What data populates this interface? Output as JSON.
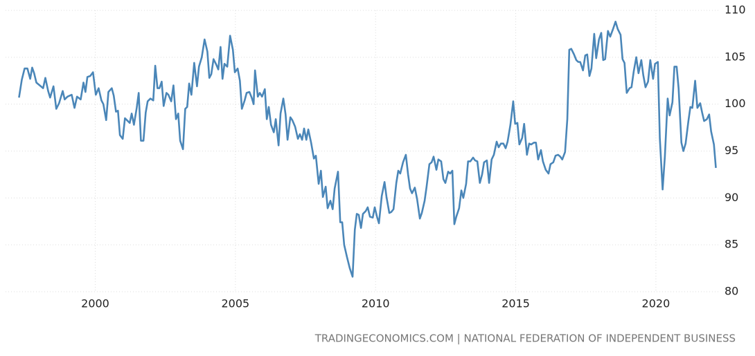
{
  "chart_data": {
    "type": "line",
    "source": "TRADINGECONOMICS.COM | NATIONAL FEDERATION OF INDEPENDENT BUSINESS",
    "color": "#4a86b8",
    "grid": true,
    "xlim": [
      1996.8,
      2022.3
    ],
    "xticks": [
      2000,
      2005,
      2010,
      2015,
      2020
    ],
    "ylim": [
      80,
      110
    ],
    "yticks": [
      80,
      85,
      90,
      95,
      100,
      105,
      110
    ],
    "x": [
      1997.28,
      1997.38,
      1997.48,
      1997.58,
      1997.68,
      1997.75,
      1997.82,
      1997.9,
      1998.02,
      1998.14,
      1998.22,
      1998.32,
      1998.39,
      1998.51,
      1998.61,
      1998.71,
      1998.84,
      1998.91,
      1999.01,
      1999.16,
      1999.26,
      1999.35,
      1999.48,
      1999.58,
      1999.65,
      1999.72,
      1999.82,
      1999.92,
      2000.02,
      2000.12,
      2000.22,
      2000.29,
      2000.39,
      2000.47,
      2000.59,
      2000.66,
      2000.74,
      2000.81,
      2000.88,
      2000.98,
      2001.06,
      2001.16,
      2001.23,
      2001.3,
      2001.38,
      2001.48,
      2001.55,
      2001.63,
      2001.72,
      2001.8,
      2001.87,
      2001.97,
      2002.07,
      2002.14,
      2002.22,
      2002.29,
      2002.37,
      2002.44,
      2002.54,
      2002.61,
      2002.71,
      2002.79,
      2002.88,
      2002.96,
      2003.03,
      2003.13,
      2003.21,
      2003.28,
      2003.35,
      2003.43,
      2003.53,
      2003.63,
      2003.7,
      2003.8,
      2003.9,
      2004.0,
      2004.07,
      2004.14,
      2004.22,
      2004.32,
      2004.39,
      2004.47,
      2004.54,
      2004.61,
      2004.71,
      2004.81,
      2004.91,
      2004.98,
      2005.08,
      2005.16,
      2005.23,
      2005.33,
      2005.4,
      2005.5,
      2005.58,
      2005.65,
      2005.7,
      2005.8,
      2005.87,
      2005.95,
      2006.05,
      2006.12,
      2006.19,
      2006.27,
      2006.37,
      2006.44,
      2006.54,
      2006.61,
      2006.71,
      2006.79,
      2006.86,
      2006.96,
      2007.03,
      2007.13,
      2007.23,
      2007.3,
      2007.38,
      2007.45,
      2007.53,
      2007.6,
      2007.7,
      2007.8,
      2007.87,
      2007.97,
      2008.05,
      2008.12,
      2008.22,
      2008.29,
      2008.39,
      2008.47,
      2008.54,
      2008.66,
      2008.74,
      2008.81,
      2008.88,
      2008.98,
      2009.08,
      2009.18,
      2009.26,
      2009.33,
      2009.4,
      2009.48,
      2009.55,
      2009.65,
      2009.72,
      2009.8,
      2009.9,
      2009.97,
      2010.05,
      2010.12,
      2010.22,
      2010.32,
      2010.39,
      2010.49,
      2010.56,
      2010.64,
      2010.74,
      2010.81,
      2010.88,
      2010.98,
      2011.08,
      2011.16,
      2011.23,
      2011.3,
      2011.4,
      2011.48,
      2011.58,
      2011.65,
      2011.75,
      2011.82,
      2011.92,
      2012.0,
      2012.07,
      2012.17,
      2012.24,
      2012.34,
      2012.42,
      2012.49,
      2012.59,
      2012.66,
      2012.74,
      2012.81,
      2012.88,
      2012.98,
      2013.06,
      2013.13,
      2013.23,
      2013.3,
      2013.38,
      2013.48,
      2013.55,
      2013.63,
      2013.72,
      2013.8,
      2013.87,
      2013.97,
      2014.05,
      2014.14,
      2014.22,
      2014.32,
      2014.39,
      2014.47,
      2014.56,
      2014.64,
      2014.71,
      2014.81,
      2014.91,
      2014.98,
      2015.06,
      2015.13,
      2015.23,
      2015.3,
      2015.4,
      2015.48,
      2015.55,
      2015.65,
      2015.72,
      2015.8,
      2015.9,
      2015.97,
      2016.07,
      2016.17,
      2016.24,
      2016.34,
      2016.42,
      2016.51,
      2016.59,
      2016.66,
      2016.76,
      2016.84,
      2016.91,
      2016.98,
      2017.08,
      2017.16,
      2017.23,
      2017.3,
      2017.4,
      2017.48,
      2017.55,
      2017.63,
      2017.7,
      2017.8,
      2017.87,
      2017.97,
      2018.05,
      2018.12,
      2018.19,
      2018.29,
      2018.37,
      2018.47,
      2018.56,
      2018.64,
      2018.74,
      2018.81,
      2018.88,
      2018.96,
      2019.06,
      2019.13,
      2019.21,
      2019.3,
      2019.38,
      2019.48,
      2019.55,
      2019.63,
      2019.72,
      2019.8,
      2019.9,
      2019.97,
      2020.07,
      2020.14,
      2020.24,
      2020.32,
      2020.42,
      2020.49,
      2020.59,
      2020.66,
      2020.74,
      2020.81,
      2020.91,
      2020.98,
      2021.06,
      2021.16,
      2021.23,
      2021.3,
      2021.4,
      2021.48,
      2021.58,
      2021.65,
      2021.72,
      2021.82,
      2021.9,
      2021.97,
      2022.07,
      2022.14
    ],
    "values": [
      100.7,
      102.6,
      103.8,
      103.8,
      102.7,
      103.9,
      103.3,
      102.3,
      102.0,
      101.7,
      102.8,
      101.4,
      100.7,
      101.9,
      99.5,
      100.1,
      101.4,
      100.5,
      100.8,
      101.0,
      99.6,
      100.8,
      100.5,
      102.3,
      101.3,
      102.9,
      103.0,
      103.4,
      101.0,
      101.7,
      100.4,
      100.0,
      98.3,
      101.3,
      101.7,
      100.9,
      99.2,
      99.3,
      96.7,
      96.3,
      98.5,
      98.2,
      98.0,
      99.0,
      97.8,
      99.6,
      101.2,
      96.1,
      96.1,
      99.1,
      100.3,
      100.6,
      100.4,
      104.1,
      101.7,
      101.7,
      102.4,
      99.8,
      101.2,
      101.0,
      100.3,
      102.0,
      98.4,
      99.0,
      96.1,
      95.2,
      99.5,
      99.7,
      102.2,
      101.0,
      104.4,
      101.9,
      104.0,
      105.0,
      106.9,
      105.6,
      102.8,
      103.2,
      104.8,
      104.2,
      103.7,
      106.1,
      102.7,
      104.3,
      104.0,
      107.3,
      105.8,
      103.4,
      103.8,
      102.5,
      99.5,
      100.4,
      101.2,
      101.3,
      100.7,
      100.0,
      103.6,
      100.8,
      101.2,
      100.8,
      101.6,
      98.4,
      99.7,
      97.8,
      97.0,
      98.4,
      95.6,
      99.0,
      100.6,
      98.9,
      96.2,
      98.6,
      98.3,
      97.6,
      96.3,
      96.8,
      96.2,
      97.4,
      96.2,
      97.3,
      95.9,
      94.2,
      94.5,
      91.5,
      92.9,
      90.1,
      91.2,
      88.9,
      89.7,
      88.8,
      91.0,
      92.8,
      87.4,
      87.4,
      85.0,
      83.7,
      82.5,
      81.6,
      86.6,
      88.3,
      88.2,
      86.8,
      88.3,
      88.6,
      89.0,
      88.0,
      87.9,
      89.0,
      88.0,
      87.3,
      90.2,
      91.7,
      90.1,
      88.4,
      88.5,
      88.8,
      91.6,
      92.9,
      92.6,
      93.8,
      94.6,
      92.5,
      91.0,
      90.5,
      91.1,
      89.9,
      87.8,
      88.4,
      89.7,
      91.2,
      93.6,
      93.8,
      94.4,
      93.0,
      94.1,
      93.9,
      92.0,
      91.6,
      92.8,
      92.6,
      92.9,
      87.2,
      88.0,
      88.9,
      90.8,
      90.0,
      91.5,
      93.9,
      93.9,
      94.3,
      94.0,
      93.9,
      91.6,
      92.5,
      93.8,
      94.0,
      91.6,
      94.1,
      94.6,
      96.0,
      95.4,
      95.8,
      95.8,
      95.3,
      96.0,
      97.8,
      100.3,
      97.9,
      98.0,
      95.7,
      96.4,
      97.9,
      94.6,
      95.8,
      95.7,
      95.9,
      95.9,
      94.1,
      95.1,
      93.9,
      93.0,
      92.6,
      93.6,
      93.8,
      94.5,
      94.6,
      94.4,
      94.1,
      94.9,
      98.4,
      105.8,
      105.9,
      105.3,
      104.7,
      104.5,
      104.5,
      103.6,
      105.2,
      105.3,
      103.0,
      103.8,
      107.5,
      104.9,
      106.9,
      107.6,
      104.7,
      104.8,
      107.8,
      107.2,
      108.0,
      108.8,
      108.0,
      107.4,
      104.8,
      104.4,
      101.2,
      101.7,
      101.8,
      103.5,
      105.0,
      103.3,
      104.7,
      103.1,
      101.8,
      102.4,
      104.7,
      102.7,
      104.3,
      104.5,
      96.4,
      90.9,
      94.4,
      100.6,
      98.8,
      100.2,
      104.0,
      104.0,
      101.7,
      95.9,
      95.0,
      95.8,
      98.2,
      99.7,
      99.6,
      102.5,
      99.6,
      100.1,
      99.1,
      98.2,
      98.4,
      98.9,
      97.1,
      95.7,
      93.2
    ]
  }
}
